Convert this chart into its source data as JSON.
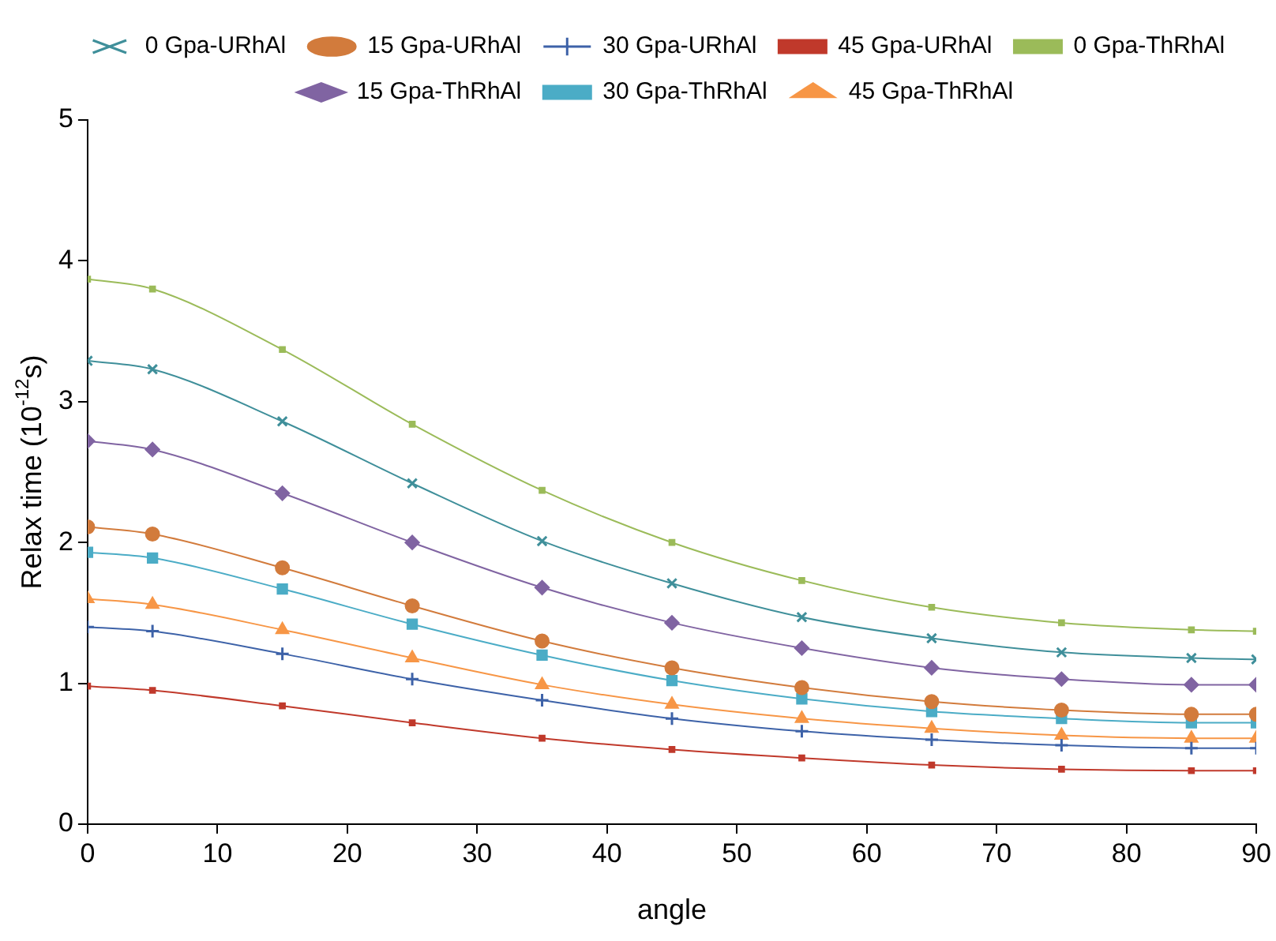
{
  "chart_data": {
    "type": "line",
    "xlabel": "angle",
    "ylabel": "Relax time (10$^{-12}$s)",
    "x": [
      0,
      5,
      15,
      25,
      35,
      45,
      55,
      65,
      75,
      85,
      90
    ],
    "xlim": [
      0,
      90
    ],
    "xticks": [
      0,
      10,
      20,
      30,
      40,
      50,
      60,
      70,
      80,
      90
    ],
    "ylim": [
      0,
      5
    ],
    "yticks": [
      0,
      1,
      2,
      3,
      4,
      5
    ],
    "grid": false,
    "legend": "top",
    "series": [
      {
        "name": "0 Gpa-URhAl",
        "color": "#3f8f9a",
        "marker": "x",
        "values": [
          3.29,
          3.23,
          2.86,
          2.42,
          2.01,
          1.71,
          1.47,
          1.32,
          1.22,
          1.18,
          1.17
        ]
      },
      {
        "name": "15 Gpa-URhAl",
        "color": "#d27b3c",
        "marker": "circle",
        "values": [
          2.11,
          2.06,
          1.82,
          1.55,
          1.3,
          1.11,
          0.97,
          0.87,
          0.81,
          0.78,
          0.78
        ]
      },
      {
        "name": "30 Gpa-URhAl",
        "color": "#3d62a8",
        "marker": "cross",
        "values": [
          1.4,
          1.37,
          1.21,
          1.03,
          0.88,
          0.75,
          0.66,
          0.6,
          0.56,
          0.54,
          0.54
        ]
      },
      {
        "name": "45 Gpa-URhAl",
        "color": "#c0392b",
        "marker": "square",
        "values": [
          0.98,
          0.95,
          0.84,
          0.72,
          0.61,
          0.53,
          0.47,
          0.42,
          0.39,
          0.38,
          0.38
        ]
      },
      {
        "name": "0 Gpa-ThRhAl",
        "color": "#9bbb59",
        "marker": "square",
        "values": [
          3.87,
          3.8,
          3.37,
          2.84,
          2.37,
          2.0,
          1.73,
          1.54,
          1.43,
          1.38,
          1.37
        ]
      },
      {
        "name": "15 Gpa-ThRhAl",
        "color": "#8064a2",
        "marker": "diamond",
        "values": [
          2.72,
          2.66,
          2.35,
          2.0,
          1.68,
          1.43,
          1.25,
          1.11,
          1.03,
          0.99,
          0.99
        ]
      },
      {
        "name": "30 Gpa-ThRhAl",
        "color": "#4bacc6",
        "marker": "square",
        "values": [
          1.93,
          1.89,
          1.67,
          1.42,
          1.2,
          1.02,
          0.89,
          0.8,
          0.75,
          0.72,
          0.72
        ]
      },
      {
        "name": "45 Gpa-ThRhAl",
        "color": "#f79646",
        "marker": "triangle",
        "values": [
          1.6,
          1.56,
          1.38,
          1.18,
          0.99,
          0.85,
          0.75,
          0.68,
          0.63,
          0.61,
          0.61
        ]
      }
    ]
  }
}
